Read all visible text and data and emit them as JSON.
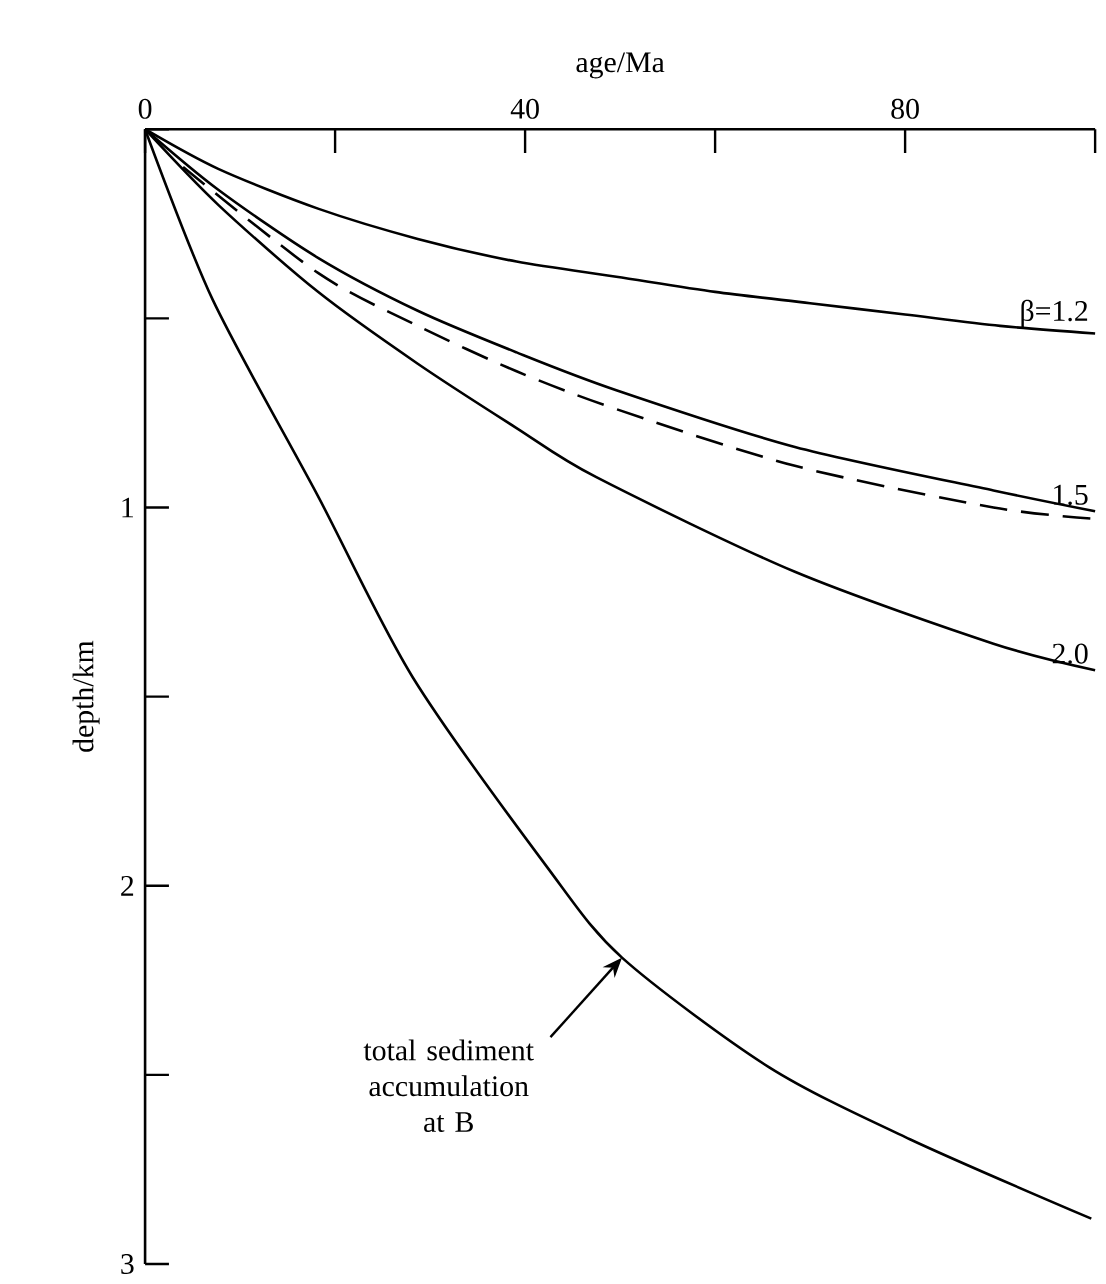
{
  "chart_data": {
    "type": "line",
    "xlabel": "age/Ma",
    "ylabel": "depth/km",
    "xlim": [
      0,
      100
    ],
    "ylim": [
      3,
      0
    ],
    "xticks": [
      0,
      {
        "value": 20,
        "label": null
      },
      40,
      {
        "value": 60,
        "label": null
      },
      80,
      {
        "value": 100,
        "label": null
      }
    ],
    "yticks": [
      {
        "value": 0,
        "label": null
      },
      {
        "value": 0.5,
        "label": null
      },
      1,
      {
        "value": 1.5,
        "label": null
      },
      2,
      {
        "value": 2.5,
        "label": null
      },
      3
    ],
    "series": [
      {
        "name": "β=1.2",
        "color": "#000000",
        "line_style": "solid",
        "x": [
          0,
          7.7,
          18.2,
          28.7,
          39.1,
          49.6,
          60,
          70,
          80,
          90,
          100
        ],
        "values": [
          0,
          0.105,
          0.21,
          0.29,
          0.35,
          0.39,
          0.43,
          0.46,
          0.49,
          0.52,
          0.54
        ]
      },
      {
        "name": "1.5",
        "color": "#000000",
        "line_style": "solid",
        "x": [
          0,
          7.7,
          18.2,
          28.7,
          39.1,
          49.6,
          68.4,
          89.3,
          100
        ],
        "values": [
          0,
          0.16,
          0.34,
          0.48,
          0.59,
          0.69,
          0.84,
          0.955,
          1.01
        ]
      },
      {
        "color": "#000000",
        "line_style": "dashed",
        "x": [
          4,
          18.2,
          28.7,
          39.1,
          49.6,
          68.4,
          89.3,
          100
        ],
        "values": [
          0.1,
          0.38,
          0.52,
          0.64,
          0.74,
          0.89,
          1.0,
          1.03
        ]
      },
      {
        "name": "2.0",
        "color": "#000000",
        "line_style": "solid",
        "x": [
          0,
          7.7,
          18.2,
          28.7,
          39.1,
          47.5,
          68.4,
          89.3,
          100
        ],
        "values": [
          0,
          0.2,
          0.43,
          0.62,
          0.79,
          0.92,
          1.17,
          1.36,
          1.43
        ]
      },
      {
        "color": "#000000",
        "line_style": "solid",
        "x": [
          0,
          7.1,
          18.2,
          28.2,
          42.3,
          50.2,
          65.7,
          80.5,
          99.6
        ],
        "values": [
          0,
          0.45,
          0.97,
          1.45,
          1.95,
          2.19,
          2.48,
          2.67,
          2.88
        ]
      }
    ],
    "annotations": [
      {
        "text": "total sediment accumulation at B",
        "x": 50.2,
        "y": 2.19
      }
    ]
  }
}
